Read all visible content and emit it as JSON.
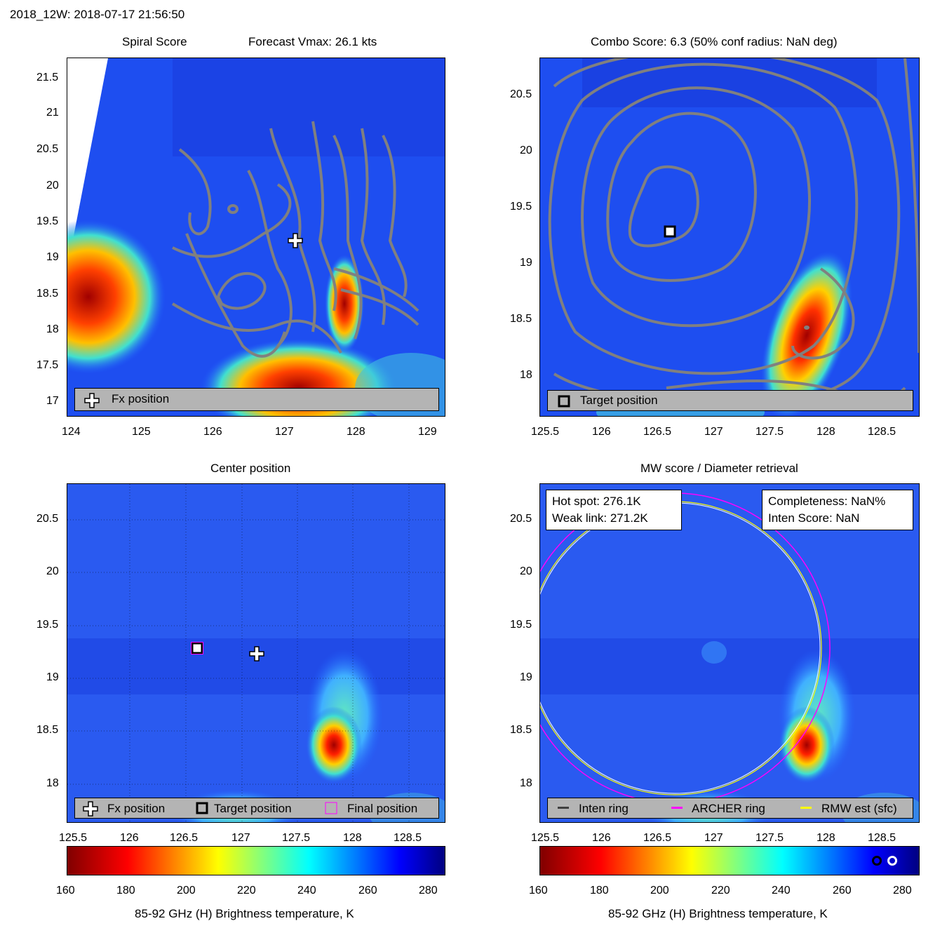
{
  "header": "2018_12W: 2018-07-17 21:56:50",
  "panels": {
    "tl": {
      "title_left": "Spiral Score",
      "title_right": "Forecast Vmax: 26.1 kts",
      "xticks": [
        "124",
        "125",
        "126",
        "127",
        "128",
        "129"
      ],
      "yticks": [
        "21.5",
        "21",
        "20.5",
        "20",
        "19.5",
        "19",
        "18.5",
        "18",
        "17.5",
        "17"
      ],
      "legend": [
        "Fx position"
      ]
    },
    "tr": {
      "title": "Combo Score: 6.3  (50% conf radius: NaN deg)",
      "xticks": [
        "125.5",
        "126",
        "126.5",
        "127",
        "127.5",
        "128",
        "128.5"
      ],
      "yticks": [
        "20.5",
        "20",
        "19.5",
        "19",
        "18.5",
        "18"
      ],
      "legend": [
        "Target position"
      ]
    },
    "bl": {
      "title": "Center position",
      "xticks": [
        "125.5",
        "126",
        "126.5",
        "127",
        "127.5",
        "128",
        "128.5"
      ],
      "yticks": [
        "20.5",
        "20",
        "19.5",
        "19",
        "18.5",
        "18"
      ],
      "legend": [
        "Fx position",
        "Target position",
        "Final position"
      ]
    },
    "br": {
      "title": "MW score / Diameter retrieval",
      "xticks": [
        "125.5",
        "126",
        "126.5",
        "127",
        "127.5",
        "128",
        "128.5"
      ],
      "yticks": [
        "20.5",
        "20",
        "19.5",
        "19",
        "18.5",
        "18"
      ],
      "info_left": [
        "Hot spot: 276.1K",
        "Weak link: 271.2K"
      ],
      "info_right": [
        "Completeness: NaN%",
        "Inten Score: NaN"
      ],
      "legend": [
        "Inten ring",
        "ARCHER ring",
        "RMW est (sfc)"
      ],
      "legend_colors": [
        "#404040",
        "#ff00ff",
        "#ffff00"
      ]
    }
  },
  "colorbar": {
    "ticks": [
      "160",
      "180",
      "200",
      "220",
      "240",
      "260",
      "280"
    ],
    "label": "85-92 GHz (H) Brightness temperature, K",
    "range": [
      160,
      285
    ]
  },
  "chart_data": [
    {
      "type": "heatmap",
      "panel": "Spiral Score",
      "xlim": [
        124,
        129.25
      ],
      "ylim": [
        16.8,
        21.8
      ],
      "markers": [
        {
          "name": "Fx position",
          "x": 127.15,
          "y": 19.22
        }
      ]
    },
    {
      "type": "heatmap",
      "panel": "Combo Score",
      "xlim": [
        125.4,
        128.8
      ],
      "ylim": [
        17.6,
        20.8
      ],
      "markers": [
        {
          "name": "Target position",
          "x": 126.6,
          "y": 19.28
        }
      ]
    },
    {
      "type": "heatmap",
      "panel": "Center position",
      "xlim": [
        125.4,
        128.8
      ],
      "ylim": [
        17.6,
        20.8
      ],
      "markers": [
        {
          "name": "Fx position",
          "x": 127.15,
          "y": 19.22
        },
        {
          "name": "Target position",
          "x": 126.6,
          "y": 19.28
        },
        {
          "name": "Final position",
          "x": 126.6,
          "y": 19.28
        }
      ]
    },
    {
      "type": "heatmap",
      "panel": "MW score / Diameter retrieval",
      "xlim": [
        125.4,
        128.8
      ],
      "ylim": [
        17.6,
        20.8
      ],
      "rings": [
        {
          "name": "ARCHER ring",
          "cx": 126.7,
          "cy": 19.12,
          "r": 1.33
        },
        {
          "name": "RMW est (sfc)",
          "cx": 126.7,
          "cy": 19.15,
          "r": 1.25
        }
      ]
    }
  ]
}
